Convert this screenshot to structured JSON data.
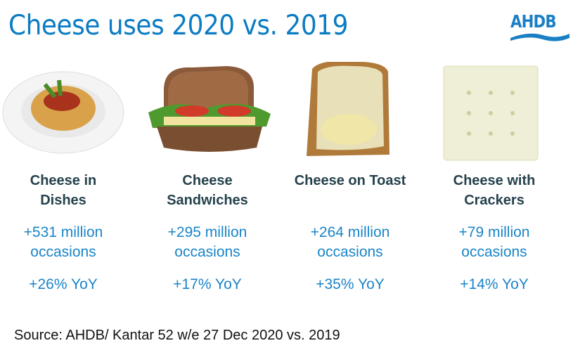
{
  "title": "Cheese uses 2020 vs. 2019",
  "logo": "AHDB",
  "items": [
    {
      "name_l1": "Cheese in",
      "name_l2": "Dishes",
      "occ_l1": "+531 million",
      "occ_l2": "occasions",
      "yoy": "+26% YoY",
      "image": "spaghetti-bolognese"
    },
    {
      "name_l1": "Cheese",
      "name_l2": "Sandwiches",
      "occ_l1": "+295 million",
      "occ_l2": "occasions",
      "yoy": "+17% YoY",
      "image": "sandwich"
    },
    {
      "name_l1": "Cheese on Toast",
      "name_l2": "",
      "occ_l1": "+264 million",
      "occ_l2": "occasions",
      "yoy": "+35% YoY",
      "image": "cheese-toast"
    },
    {
      "name_l1": "Cheese with",
      "name_l2": "Crackers",
      "occ_l1": "+79 million",
      "occ_l2": "occasions",
      "yoy": "+14% YoY",
      "image": "cracker"
    }
  ],
  "source": "Source: AHDB/ Kantar 52 w/e 27 Dec 2020 vs. 2019",
  "colors": {
    "title": "#0b7cc3",
    "heading": "#25424c",
    "stat": "#1a85c8"
  }
}
